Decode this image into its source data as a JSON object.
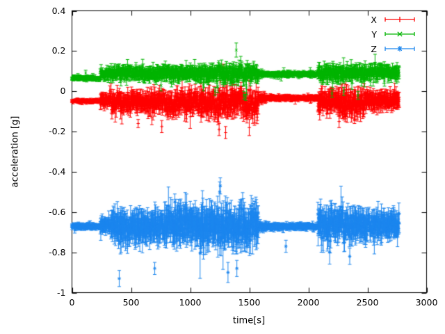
{
  "chart_data": {
    "type": "scatter",
    "style": "points-with-y-errorbars",
    "title": "",
    "xlabel": "time[s]",
    "ylabel": "acceleration [g]",
    "xlim": [
      0,
      3000
    ],
    "ylim": [
      -1,
      0.4
    ],
    "xticks": [
      0,
      500,
      1000,
      1500,
      2000,
      2500,
      3000
    ],
    "xtick_labels": [
      "0",
      "500",
      "1000",
      "1500",
      "2000",
      "2500",
      "3000"
    ],
    "yticks": [
      -1,
      -0.8,
      -0.6,
      -0.4,
      -0.2,
      0,
      0.2,
      0.4
    ],
    "ytick_labels": [
      "-1",
      "-0.8",
      "-0.6",
      "-0.4",
      "-0.2",
      "0",
      "0.2",
      "0.4"
    ],
    "grid": false,
    "legend_position": "top-right-inside",
    "background": "#ffffff",
    "sample_step_s": 2,
    "series": [
      {
        "name": "X",
        "color": "#ff0000",
        "marker": "plus",
        "segments": [
          {
            "t0": 0,
            "t1": 240,
            "y": -0.048,
            "sd": 0.003,
            "err": 0.009
          },
          {
            "t0": 240,
            "t1": 330,
            "y": -0.045,
            "sd": 0.012,
            "err": 0.025
          },
          {
            "t0": 330,
            "t1": 800,
            "y": -0.055,
            "sd": 0.02,
            "err": 0.038
          },
          {
            "t0": 800,
            "t1": 1080,
            "y": -0.06,
            "sd": 0.024,
            "err": 0.042
          },
          {
            "t0": 1080,
            "t1": 1580,
            "y": -0.06,
            "sd": 0.027,
            "err": 0.046
          },
          {
            "t0": 1580,
            "t1": 1650,
            "y": -0.036,
            "sd": 0.008,
            "err": 0.015
          },
          {
            "t0": 1650,
            "t1": 2080,
            "y": -0.033,
            "sd": 0.004,
            "err": 0.011
          },
          {
            "t0": 2080,
            "t1": 2250,
            "y": -0.055,
            "sd": 0.022,
            "err": 0.04
          },
          {
            "t0": 2250,
            "t1": 2480,
            "y": -0.06,
            "sd": 0.025,
            "err": 0.044
          },
          {
            "t0": 2480,
            "t1": 2770,
            "y": -0.045,
            "sd": 0.018,
            "err": 0.034
          }
        ],
        "events": [
          {
            "t": 560,
            "y": -0.16,
            "err": 0.02
          },
          {
            "t": 760,
            "y": -0.175,
            "err": 0.03
          },
          {
            "t": 1245,
            "y": -0.19,
            "err": 0.03
          },
          {
            "t": 1280,
            "y": 0.115,
            "err": 0.02
          },
          {
            "t": 1300,
            "y": -0.205,
            "err": 0.03
          },
          {
            "t": 1500,
            "y": -0.18,
            "err": 0.04
          },
          {
            "t": 2260,
            "y": -0.15,
            "err": 0.03
          },
          {
            "t": 2390,
            "y": -0.14,
            "err": 0.02
          }
        ]
      },
      {
        "name": "Y",
        "color": "#00b400",
        "marker": "cross",
        "segments": [
          {
            "t0": 0,
            "t1": 240,
            "y": 0.065,
            "sd": 0.004,
            "err": 0.009
          },
          {
            "t0": 240,
            "t1": 330,
            "y": 0.085,
            "sd": 0.01,
            "err": 0.02
          },
          {
            "t0": 330,
            "t1": 1080,
            "y": 0.092,
            "sd": 0.013,
            "err": 0.026
          },
          {
            "t0": 1080,
            "t1": 1580,
            "y": 0.088,
            "sd": 0.016,
            "err": 0.03
          },
          {
            "t0": 1580,
            "t1": 1650,
            "y": 0.085,
            "sd": 0.006,
            "err": 0.012
          },
          {
            "t0": 1650,
            "t1": 2080,
            "y": 0.085,
            "sd": 0.004,
            "err": 0.011
          },
          {
            "t0": 2080,
            "t1": 2480,
            "y": 0.09,
            "sd": 0.015,
            "err": 0.028
          },
          {
            "t0": 2480,
            "t1": 2770,
            "y": 0.095,
            "sd": 0.013,
            "err": 0.026
          }
        ],
        "events": [
          {
            "t": 1210,
            "y": 0.0,
            "err": 0.02
          },
          {
            "t": 1390,
            "y": 0.205,
            "err": 0.035
          },
          {
            "t": 1455,
            "y": -0.02,
            "err": 0.02
          },
          {
            "t": 1470,
            "y": -0.03,
            "err": 0.015
          },
          {
            "t": 2200,
            "y": -0.01,
            "err": 0.02
          },
          {
            "t": 2300,
            "y": 0.0,
            "err": 0.02
          },
          {
            "t": 2420,
            "y": -0.02,
            "err": 0.02
          }
        ]
      },
      {
        "name": "Z",
        "color": "#1c86ee",
        "marker": "star",
        "segments": [
          {
            "t0": 0,
            "t1": 240,
            "y": -0.672,
            "sd": 0.005,
            "err": 0.011
          },
          {
            "t0": 240,
            "t1": 330,
            "y": -0.668,
            "sd": 0.015,
            "err": 0.03
          },
          {
            "t0": 330,
            "t1": 800,
            "y": -0.67,
            "sd": 0.028,
            "err": 0.062
          },
          {
            "t0": 800,
            "t1": 1080,
            "y": -0.665,
            "sd": 0.032,
            "err": 0.07
          },
          {
            "t0": 1080,
            "t1": 1580,
            "y": -0.67,
            "sd": 0.035,
            "err": 0.075
          },
          {
            "t0": 1580,
            "t1": 1650,
            "y": -0.672,
            "sd": 0.008,
            "err": 0.015
          },
          {
            "t0": 1650,
            "t1": 2080,
            "y": -0.672,
            "sd": 0.005,
            "err": 0.013
          },
          {
            "t0": 2080,
            "t1": 2480,
            "y": -0.66,
            "sd": 0.028,
            "err": 0.058
          },
          {
            "t0": 2480,
            "t1": 2770,
            "y": -0.665,
            "sd": 0.024,
            "err": 0.052
          }
        ],
        "events": [
          {
            "t": 400,
            "y": -0.93,
            "err": 0.04
          },
          {
            "t": 700,
            "y": -0.88,
            "err": 0.03
          },
          {
            "t": 870,
            "y": -0.55,
            "err": 0.04
          },
          {
            "t": 1250,
            "y": -0.5,
            "err": 0.05
          },
          {
            "t": 1255,
            "y": -0.47,
            "err": 0.04
          },
          {
            "t": 1320,
            "y": -0.9,
            "err": 0.05
          },
          {
            "t": 1395,
            "y": -0.88,
            "err": 0.04
          },
          {
            "t": 1810,
            "y": -0.77,
            "err": 0.03
          },
          {
            "t": 2350,
            "y": -0.82,
            "err": 0.04
          }
        ]
      }
    ]
  }
}
